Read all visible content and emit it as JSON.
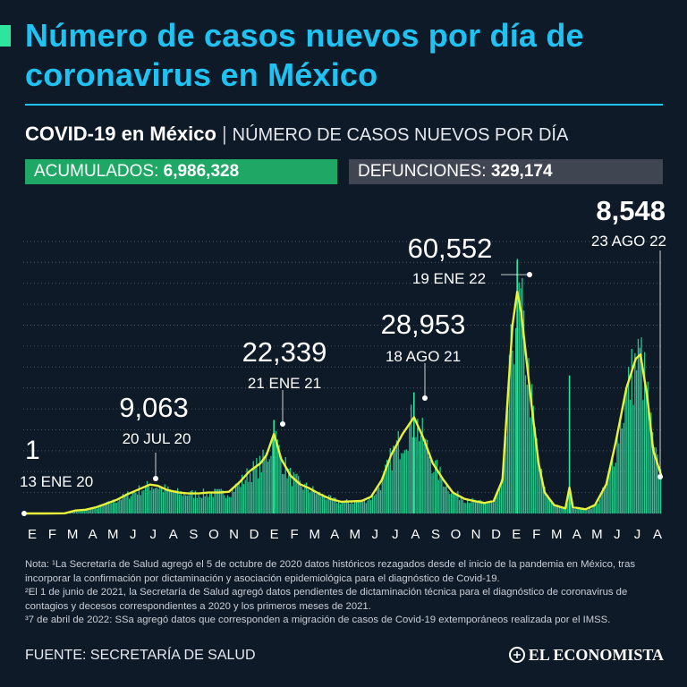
{
  "header": {
    "title": "Número de casos nuevos por día de coronavirus en México",
    "subtitle_bold": "COVID-19 en México",
    "subtitle_sep": "|",
    "subtitle_rest": "NÚMERO DE CASOS NUEVOS POR DÍA"
  },
  "summary": {
    "acumulados_label": "ACUMULADOS:",
    "acumulados_value": "6,986,328",
    "defunciones_label": "DEFUNCIONES:",
    "defunciones_value": "329,174"
  },
  "colors": {
    "background": "#0f1a29",
    "title": "#1fc3f3",
    "bars": "#2ee59d",
    "trend_line": "#e8f23a",
    "acumulados_pill": "#1fa865",
    "defunciones_pill": "#3f4652"
  },
  "chart_data": {
    "type": "bar",
    "overlay": "line",
    "grid": true,
    "ylim": [
      0,
      65000
    ],
    "x_tick_labels": [
      "E",
      "F",
      "M",
      "A",
      "M",
      "J",
      "J",
      "A",
      "S",
      "O",
      "N",
      "D",
      "E",
      "F",
      "M",
      "A",
      "M",
      "J",
      "J",
      "A",
      "S",
      "O",
      "N",
      "D",
      "E",
      "F",
      "M",
      "A",
      "M",
      "J",
      "J",
      "A"
    ],
    "annotations": [
      {
        "value": "1",
        "date": "13 ENE 20"
      },
      {
        "value": "9,063",
        "date": "20 JUL 20"
      },
      {
        "value": "22,339",
        "date": "21 ENE 21"
      },
      {
        "value": "28,953",
        "date": "18 AGO 21"
      },
      {
        "value": "60,552",
        "date": "19 ENE 22"
      },
      {
        "value": "8,548",
        "date": "23 AGO 22"
      }
    ],
    "trend": [
      [
        "2020-01-13",
        0
      ],
      [
        "2020-02-15",
        0
      ],
      [
        "2020-03-15",
        50
      ],
      [
        "2020-03-31",
        700
      ],
      [
        "2020-04-15",
        900
      ],
      [
        "2020-05-01",
        1500
      ],
      [
        "2020-05-15",
        2300
      ],
      [
        "2020-06-01",
        3300
      ],
      [
        "2020-06-15",
        4500
      ],
      [
        "2020-07-01",
        5600
      ],
      [
        "2020-07-20",
        6900
      ],
      [
        "2020-08-01",
        6600
      ],
      [
        "2020-08-15",
        5600
      ],
      [
        "2020-09-01",
        5000
      ],
      [
        "2020-09-15",
        4800
      ],
      [
        "2020-10-01",
        4800
      ],
      [
        "2020-10-15",
        5000
      ],
      [
        "2020-11-01",
        5000
      ],
      [
        "2020-11-15",
        5200
      ],
      [
        "2020-12-01",
        7500
      ],
      [
        "2020-12-15",
        10000
      ],
      [
        "2021-01-01",
        12000
      ],
      [
        "2021-01-10",
        14000
      ],
      [
        "2021-01-21",
        19000
      ],
      [
        "2021-02-01",
        13000
      ],
      [
        "2021-02-15",
        9000
      ],
      [
        "2021-03-01",
        7000
      ],
      [
        "2021-03-15",
        6000
      ],
      [
        "2021-04-01",
        4500
      ],
      [
        "2021-04-15",
        3500
      ],
      [
        "2021-05-01",
        2800
      ],
      [
        "2021-06-01",
        3000
      ],
      [
        "2021-06-15",
        4000
      ],
      [
        "2021-07-01",
        8000
      ],
      [
        "2021-07-15",
        14000
      ],
      [
        "2021-08-01",
        19000
      ],
      [
        "2021-08-18",
        23000
      ],
      [
        "2021-09-01",
        18000
      ],
      [
        "2021-09-15",
        12000
      ],
      [
        "2021-10-01",
        8000
      ],
      [
        "2021-10-15",
        5000
      ],
      [
        "2021-11-01",
        3500
      ],
      [
        "2021-11-15",
        3000
      ],
      [
        "2021-12-01",
        2500
      ],
      [
        "2021-12-15",
        3000
      ],
      [
        "2021-12-28",
        8000
      ],
      [
        "2022-01-05",
        28000
      ],
      [
        "2022-01-12",
        45000
      ],
      [
        "2022-01-19",
        53000
      ],
      [
        "2022-01-25",
        48000
      ],
      [
        "2022-02-01",
        38000
      ],
      [
        "2022-02-10",
        25000
      ],
      [
        "2022-02-20",
        12000
      ],
      [
        "2022-03-01",
        5000
      ],
      [
        "2022-03-15",
        2000
      ],
      [
        "2022-04-01",
        1200
      ],
      [
        "2022-04-07",
        6200
      ],
      [
        "2022-04-12",
        1500
      ],
      [
        "2022-05-01",
        1000
      ],
      [
        "2022-05-15",
        2000
      ],
      [
        "2022-06-01",
        7000
      ],
      [
        "2022-06-15",
        17000
      ],
      [
        "2022-07-01",
        30000
      ],
      [
        "2022-07-15",
        37000
      ],
      [
        "2022-07-22",
        38000
      ],
      [
        "2022-08-01",
        28000
      ],
      [
        "2022-08-10",
        15000
      ],
      [
        "2022-08-23",
        8548
      ]
    ],
    "peak_spikes": [
      [
        "2021-01-21",
        22339
      ],
      [
        "2021-08-18",
        28953
      ],
      [
        "2022-01-19",
        60552
      ],
      [
        "2022-04-07",
        33000
      ]
    ]
  },
  "notes": {
    "n1": "Nota: ¹La Secretaría de Salud agregó el 5 de octubre de 2020 datos históricos rezagados desde el inicio de la pandemia en México, tras incorporar la confirmación por dictaminación y asociación epidemiológica para el diagnóstico de Covid-19.",
    "n2": "²El 1 de junio de 2021, la Secretaría de Salud agregó datos pendientes de dictaminación técnica para el diagnóstico de coronavirus de contagios y decesos correspondientes a 2020 y los primeros meses de 2021.",
    "n3": "³7 de abril de 2022: SSa agregó datos que corresponden a migración de casos de Covid-19 extemporáneos realizada por el IMSS."
  },
  "footer": {
    "source": "FUENTE: SECRETARÍA DE SALUD",
    "logo": "EL ECONOMISTA",
    "logo_icon": "el-economista-logo-icon"
  }
}
